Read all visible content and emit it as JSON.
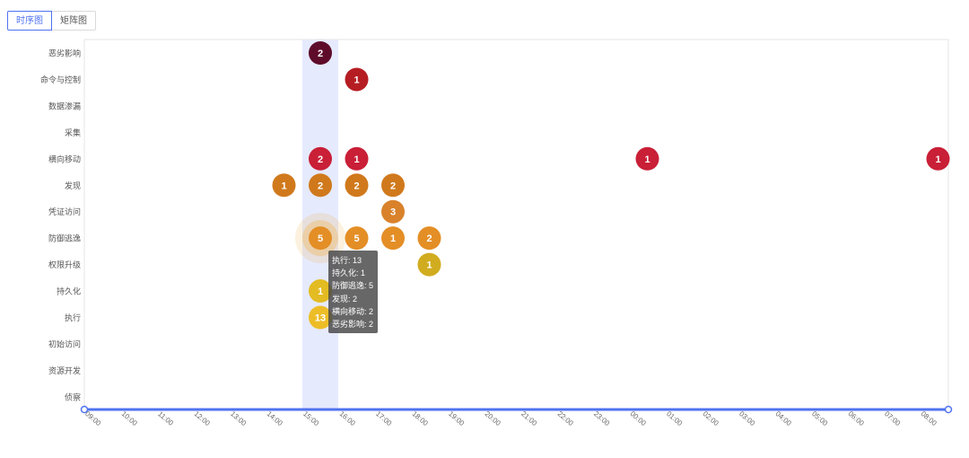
{
  "tabs": [
    {
      "label": "时序图",
      "active": true
    },
    {
      "label": "矩阵图",
      "active": false
    }
  ],
  "colors": {
    "accent": "#4f72f0",
    "highlight_band": "#e6eafd",
    "hover_halo": "#f0b24a"
  },
  "chart_data": {
    "type": "scatter",
    "title": "",
    "xlabel": "",
    "ylabel": "",
    "x_categories": [
      "09:00",
      "10:00",
      "11:00",
      "12:00",
      "13:00",
      "14:00",
      "15:00",
      "16:00",
      "17:00",
      "18:00",
      "19:00",
      "20:00",
      "21:00",
      "22:00",
      "23:00",
      "00:00",
      "01:00",
      "02:00",
      "03:00",
      "04:00",
      "05:00",
      "06:00",
      "07:00",
      "08:00"
    ],
    "y_categories": [
      "恶劣影响",
      "命令与控制",
      "数据渗漏",
      "采集",
      "横向移动",
      "发现",
      "凭证访问",
      "防御逃逸",
      "权限升级",
      "持久化",
      "执行",
      "初始访问",
      "资源开发",
      "侦察"
    ],
    "highlighted_x": "15:00",
    "hovered_point": {
      "x": "15:00",
      "y": "防御逃逸"
    },
    "points": [
      {
        "x": "15:00",
        "y": "恶劣影响",
        "value": 2,
        "color": "#5e0b2a"
      },
      {
        "x": "16:00",
        "y": "命令与控制",
        "value": 1,
        "color": "#b51d23"
      },
      {
        "x": "15:00",
        "y": "横向移动",
        "value": 2,
        "color": "#c91f37"
      },
      {
        "x": "16:00",
        "y": "横向移动",
        "value": 1,
        "color": "#c91f37"
      },
      {
        "x": "00:00",
        "y": "横向移动",
        "value": 1,
        "color": "#c91f37"
      },
      {
        "x": "08:00",
        "y": "横向移动",
        "value": 1,
        "color": "#c91f37"
      },
      {
        "x": "14:00",
        "y": "发现",
        "value": 1,
        "color": "#d0791c"
      },
      {
        "x": "15:00",
        "y": "发现",
        "value": 2,
        "color": "#d0791c"
      },
      {
        "x": "16:00",
        "y": "发现",
        "value": 2,
        "color": "#d0791c"
      },
      {
        "x": "17:00",
        "y": "发现",
        "value": 2,
        "color": "#d0791c"
      },
      {
        "x": "17:00",
        "y": "凭证访问",
        "value": 3,
        "color": "#d9822b"
      },
      {
        "x": "15:00",
        "y": "防御逃逸",
        "value": 5,
        "color": "#e48e26"
      },
      {
        "x": "16:00",
        "y": "防御逃逸",
        "value": 5,
        "color": "#e48e26"
      },
      {
        "x": "17:00",
        "y": "防御逃逸",
        "value": 1,
        "color": "#e48e26"
      },
      {
        "x": "18:00",
        "y": "防御逃逸",
        "value": 2,
        "color": "#e48e26"
      },
      {
        "x": "18:00",
        "y": "权限升级",
        "value": 1,
        "color": "#d1ac1f"
      },
      {
        "x": "15:00",
        "y": "持久化",
        "value": 1,
        "color": "#e3bb22"
      },
      {
        "x": "15:00",
        "y": "执行",
        "value": 13,
        "color": "#edbd28"
      }
    ]
  },
  "tooltip": {
    "lines": [
      "执行: 13",
      "持久化: 1",
      "防御逃逸: 5",
      "发现: 2",
      "横向移动: 2",
      "恶劣影响: 2"
    ]
  }
}
